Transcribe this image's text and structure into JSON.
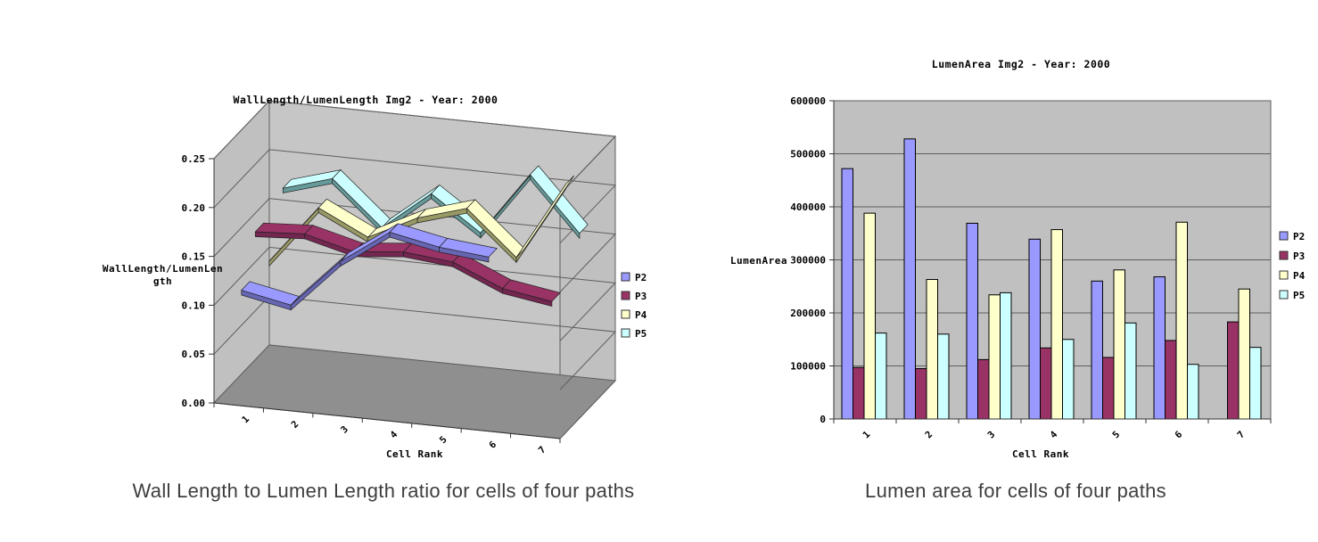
{
  "captions": {
    "left": "Wall Length to Lumen Length ratio for cells of four paths",
    "right": "Lumen area for cells of four paths"
  },
  "chart_data": [
    {
      "type": "line",
      "variant": "3d-ribbon",
      "title": "WallLength/LumenLength Img2 - Year: 2000",
      "xlabel": "Cell Rank",
      "ylabel": "WallLength/LumenLength",
      "ylabel_lines": [
        "WallLength/LumenLen",
        "gth"
      ],
      "categories": [
        "1",
        "2",
        "3",
        "4",
        "5",
        "6",
        "7"
      ],
      "ylim": [
        0,
        0.25
      ],
      "yticks": [
        "0.00",
        "0.05",
        "0.10",
        "0.15",
        "0.20",
        "0.25"
      ],
      "grid": true,
      "legend_position": "right",
      "wall_color": "#c6c6c6",
      "floor_color": "#8f8f8f",
      "grid_color": "#5e5e5e",
      "series": [
        {
          "name": "P2",
          "color": "#9999FF",
          "side_color": "#6666B3",
          "values": [
            0.115,
            0.105,
            0.155,
            0.19,
            0.18,
            0.175,
            null
          ]
        },
        {
          "name": "P3",
          "color": "#993366",
          "side_color": "#732650",
          "values": [
            0.16,
            0.163,
            0.15,
            0.155,
            0.15,
            0.128,
            0.12
          ]
        },
        {
          "name": "P4",
          "color": "#FFFFCC",
          "side_color": "#999966",
          "values": [
            0.115,
            0.175,
            0.15,
            0.175,
            0.19,
            0.145,
            0.225
          ]
        },
        {
          "name": "P5",
          "color": "#CCFFFF",
          "side_color": "#669999",
          "values": [
            0.175,
            0.19,
            0.145,
            0.185,
            0.15,
            0.215,
            0.16
          ]
        }
      ]
    },
    {
      "type": "bar",
      "title": "LumenArea Img2 - Year: 2000",
      "xlabel": "Cell Rank",
      "ylabel": "LumenArea",
      "categories": [
        "1",
        "2",
        "3",
        "4",
        "5",
        "6",
        "7"
      ],
      "ylim": [
        0,
        600000
      ],
      "ytick_step": 100000,
      "yticks": [
        "0",
        "100000",
        "200000",
        "300000",
        "400000",
        "500000",
        "600000"
      ],
      "grid": true,
      "legend_position": "right",
      "plot_bg": "#c0c0c0",
      "grid_color": "#5e5e5e",
      "series": [
        {
          "name": "P2",
          "color": "#9999FF",
          "values": [
            472000,
            528000,
            369000,
            339000,
            260000,
            268000,
            null
          ]
        },
        {
          "name": "P3",
          "color": "#993366",
          "values": [
            97000,
            95000,
            112000,
            134000,
            116000,
            148000,
            183000
          ]
        },
        {
          "name": "P4",
          "color": "#FFFFCC",
          "values": [
            388000,
            263000,
            234000,
            357000,
            281000,
            371000,
            245000
          ]
        },
        {
          "name": "P5",
          "color": "#CCFFFF",
          "values": [
            162000,
            160000,
            238000,
            150000,
            181000,
            103000,
            135000
          ]
        }
      ]
    }
  ]
}
